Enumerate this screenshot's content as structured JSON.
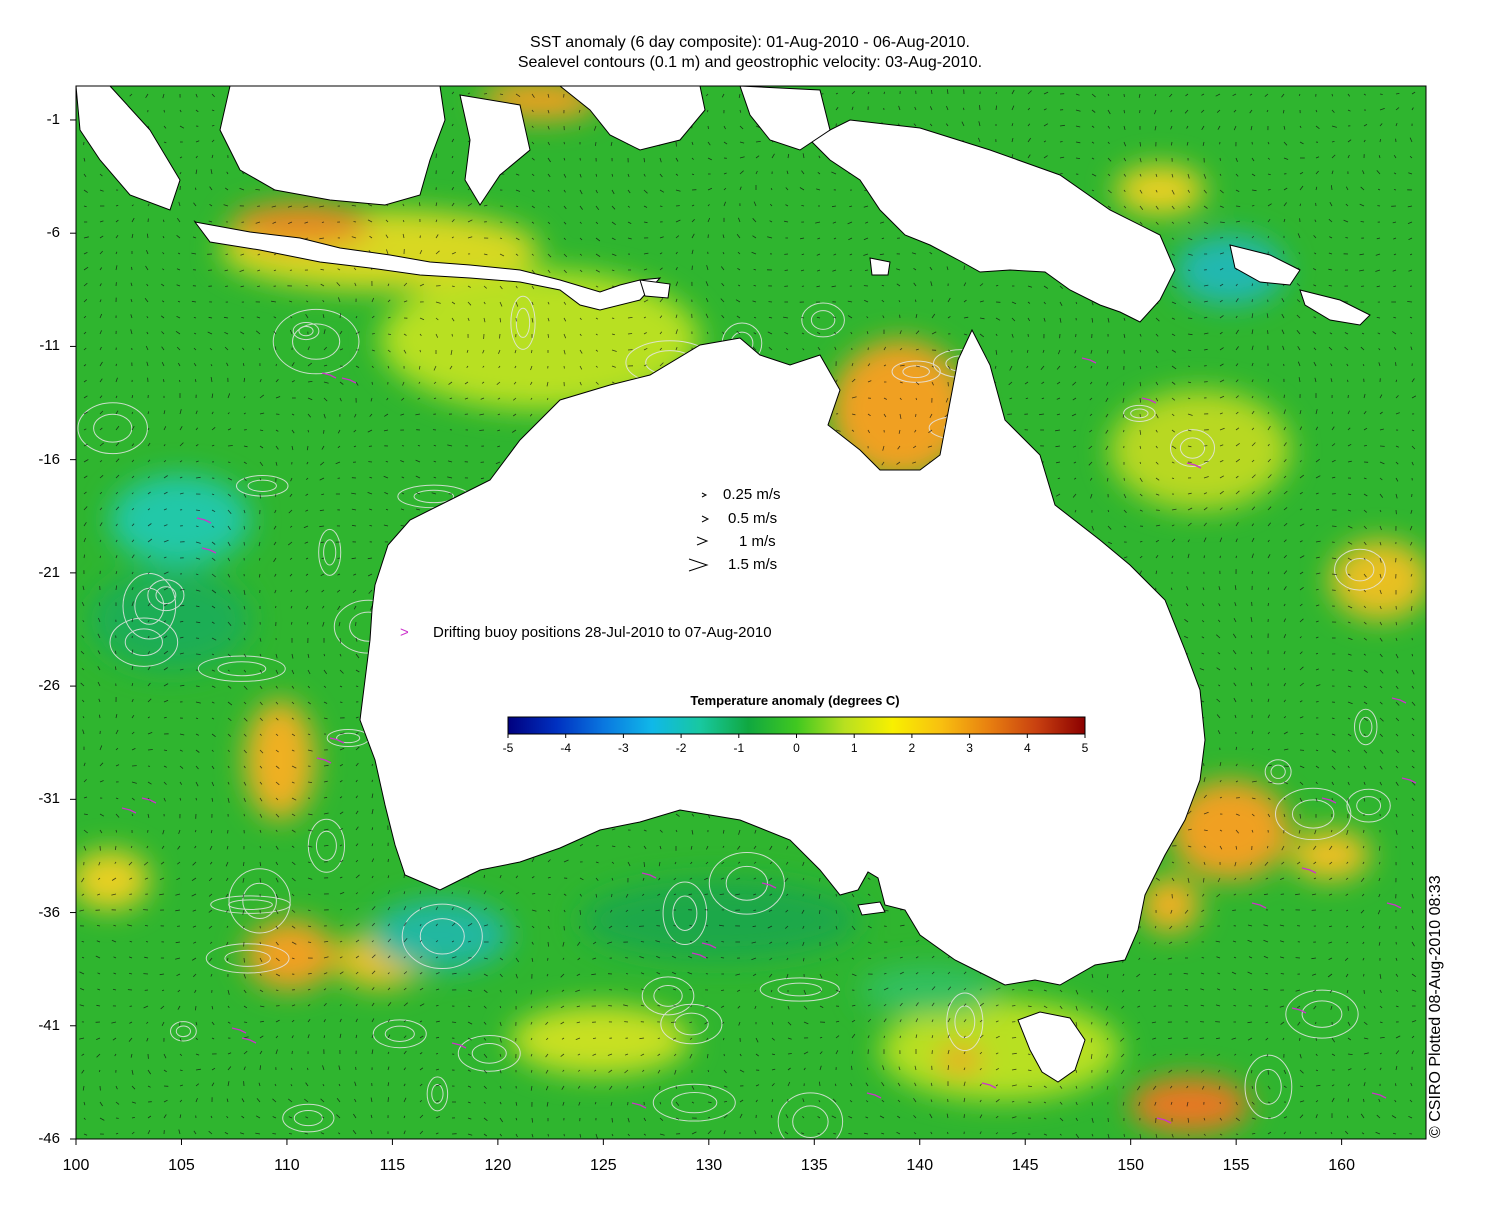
{
  "title_line1": "SST anomaly (6 day composite): 01-Aug-2010 - 06-Aug-2010.",
  "title_line2": "Sealevel contours (0.1 m) and geostrophic velocity: 03-Aug-2010.",
  "credit": "© CSIRO Plotted 08-Aug-2010 08:33",
  "velocity_legend": [
    {
      "label": "0.25 m/s",
      "speed": 0.25
    },
    {
      "label": "0.5 m/s",
      "speed": 0.5
    },
    {
      "label": "1 m/s",
      "speed": 1
    },
    {
      "label": "1.5 m/s",
      "speed": 1.5
    }
  ],
  "buoy_legend": {
    "symbol": ">",
    "label": "Drifting buoy positions 28-Jul-2010 to 07-Aug-2010",
    "color": "#cc33cc"
  },
  "colorbar": {
    "title": "Temperature anomaly (degrees C)",
    "ticks": [
      "-5",
      "-4",
      "-3",
      "-2",
      "-1",
      "0",
      "1",
      "2",
      "3",
      "4",
      "5"
    ],
    "range": [
      -5,
      5
    ],
    "colors": [
      "#00007f",
      "#0030c0",
      "#0a78e0",
      "#10b8e8",
      "#18c8a0",
      "#10a840",
      "#40c820",
      "#b8e020",
      "#f8f000",
      "#f8c010",
      "#e88010",
      "#c84010",
      "#8b0000"
    ]
  },
  "axes": {
    "x_ticks": [
      "100",
      "105",
      "110",
      "115",
      "120",
      "125",
      "130",
      "135",
      "140",
      "145",
      "150",
      "155",
      "160"
    ],
    "y_ticks": [
      "-1",
      "-6",
      "-11",
      "-16",
      "-21",
      "-26",
      "-31",
      "-36",
      "-41",
      "-46"
    ],
    "x_range": [
      100,
      164
    ],
    "y_range": [
      -46,
      0.5
    ]
  },
  "colors": {
    "ocean_base": "#2fb52f",
    "land": "#ffffff",
    "coast": "#000000",
    "contour": "#e6e6e6"
  }
}
